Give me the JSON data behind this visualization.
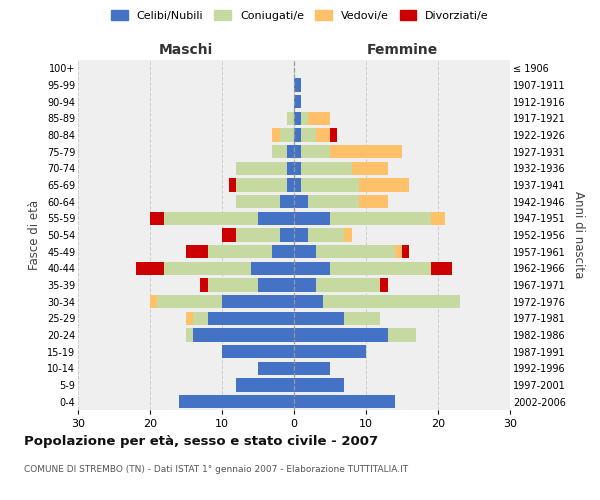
{
  "age_groups": [
    "0-4",
    "5-9",
    "10-14",
    "15-19",
    "20-24",
    "25-29",
    "30-34",
    "35-39",
    "40-44",
    "45-49",
    "50-54",
    "55-59",
    "60-64",
    "65-69",
    "70-74",
    "75-79",
    "80-84",
    "85-89",
    "90-94",
    "95-99",
    "100+"
  ],
  "birth_years": [
    "2002-2006",
    "1997-2001",
    "1992-1996",
    "1987-1991",
    "1982-1986",
    "1977-1981",
    "1972-1976",
    "1967-1971",
    "1962-1966",
    "1957-1961",
    "1952-1956",
    "1947-1951",
    "1942-1946",
    "1937-1941",
    "1932-1936",
    "1927-1931",
    "1922-1926",
    "1917-1921",
    "1912-1916",
    "1907-1911",
    "≤ 1906"
  ],
  "colors": {
    "celibi": "#4472c4",
    "coniugati": "#c5d9a0",
    "vedovi": "#ffc06a",
    "divorziati": "#cc0000"
  },
  "maschi": {
    "celibi": [
      16,
      8,
      5,
      10,
      14,
      12,
      10,
      5,
      6,
      3,
      2,
      5,
      2,
      1,
      1,
      1,
      0,
      0,
      0,
      0,
      0
    ],
    "coniugati": [
      0,
      0,
      0,
      0,
      1,
      2,
      9,
      7,
      12,
      9,
      6,
      13,
      6,
      7,
      7,
      2,
      2,
      1,
      0,
      0,
      0
    ],
    "vedovi": [
      0,
      0,
      0,
      0,
      0,
      1,
      1,
      0,
      0,
      0,
      0,
      0,
      0,
      0,
      0,
      0,
      1,
      0,
      0,
      0,
      0
    ],
    "divorziati": [
      0,
      0,
      0,
      0,
      0,
      0,
      0,
      1,
      4,
      3,
      2,
      2,
      0,
      1,
      0,
      0,
      0,
      0,
      0,
      0,
      0
    ]
  },
  "femmine": {
    "celibi": [
      14,
      7,
      5,
      10,
      13,
      7,
      4,
      3,
      5,
      3,
      2,
      5,
      2,
      1,
      1,
      1,
      1,
      1,
      1,
      1,
      0
    ],
    "coniugati": [
      0,
      0,
      0,
      0,
      4,
      5,
      19,
      9,
      14,
      11,
      5,
      14,
      7,
      8,
      7,
      4,
      2,
      1,
      0,
      0,
      0
    ],
    "vedovi": [
      0,
      0,
      0,
      0,
      0,
      0,
      0,
      0,
      0,
      1,
      1,
      2,
      4,
      7,
      5,
      10,
      2,
      3,
      0,
      0,
      0
    ],
    "divorziati": [
      0,
      0,
      0,
      0,
      0,
      0,
      0,
      1,
      3,
      1,
      0,
      0,
      0,
      0,
      0,
      0,
      1,
      0,
      0,
      0,
      0
    ]
  },
  "xlim": 30,
  "title": "Popolazione per età, sesso e stato civile - 2007",
  "subtitle": "COMUNE DI STREMBO (TN) - Dati ISTAT 1° gennaio 2007 - Elaborazione TUTTITALIA.IT",
  "ylabel_left": "Fasce di età",
  "ylabel_right": "Anni di nascita",
  "xlabel_left": "Maschi",
  "xlabel_right": "Femmine",
  "legend_labels": [
    "Celibi/Nubili",
    "Coniugati/e",
    "Vedovi/e",
    "Divorziati/e"
  ],
  "background_color": "#ffffff",
  "plot_bg_color": "#efefef"
}
